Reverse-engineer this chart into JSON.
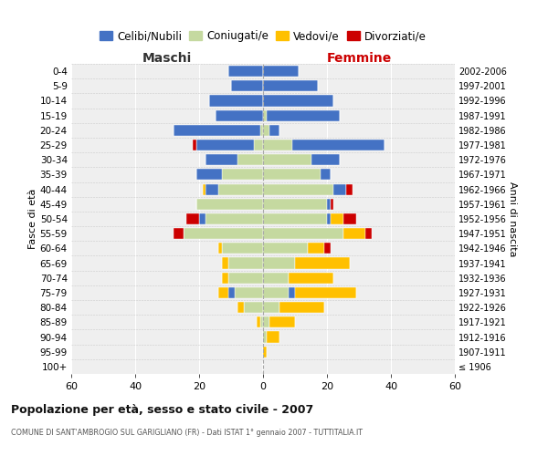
{
  "age_groups": [
    "100+",
    "95-99",
    "90-94",
    "85-89",
    "80-84",
    "75-79",
    "70-74",
    "65-69",
    "60-64",
    "55-59",
    "50-54",
    "45-49",
    "40-44",
    "35-39",
    "30-34",
    "25-29",
    "20-24",
    "15-19",
    "10-14",
    "5-9",
    "0-4"
  ],
  "birth_years": [
    "≤ 1906",
    "1907-1911",
    "1912-1916",
    "1917-1921",
    "1922-1926",
    "1927-1931",
    "1932-1936",
    "1937-1941",
    "1942-1946",
    "1947-1951",
    "1952-1956",
    "1957-1961",
    "1962-1966",
    "1967-1971",
    "1972-1976",
    "1977-1981",
    "1982-1986",
    "1987-1991",
    "1992-1996",
    "1997-2001",
    "2002-2006"
  ],
  "males": {
    "celibi": [
      0,
      0,
      0,
      0,
      0,
      2,
      0,
      0,
      0,
      0,
      2,
      0,
      4,
      8,
      10,
      18,
      27,
      15,
      17,
      10,
      11
    ],
    "coniugati": [
      0,
      0,
      0,
      1,
      6,
      9,
      11,
      11,
      13,
      25,
      18,
      21,
      14,
      13,
      8,
      3,
      1,
      0,
      0,
      0,
      0
    ],
    "vedovi": [
      0,
      0,
      0,
      1,
      2,
      3,
      2,
      2,
      1,
      0,
      0,
      0,
      1,
      0,
      0,
      0,
      0,
      0,
      0,
      0,
      0
    ],
    "divorziati": [
      0,
      0,
      0,
      0,
      0,
      0,
      0,
      0,
      0,
      3,
      4,
      0,
      0,
      0,
      0,
      1,
      0,
      0,
      0,
      0,
      0
    ]
  },
  "females": {
    "nubili": [
      0,
      0,
      0,
      0,
      0,
      2,
      0,
      0,
      0,
      0,
      1,
      1,
      4,
      3,
      9,
      29,
      3,
      23,
      22,
      17,
      11
    ],
    "coniugate": [
      0,
      0,
      1,
      2,
      5,
      8,
      8,
      10,
      14,
      25,
      20,
      20,
      22,
      18,
      15,
      9,
      2,
      1,
      0,
      0,
      0
    ],
    "vedove": [
      0,
      1,
      4,
      8,
      14,
      19,
      14,
      17,
      5,
      7,
      4,
      0,
      0,
      0,
      0,
      0,
      0,
      0,
      0,
      0,
      0
    ],
    "divorziate": [
      0,
      0,
      0,
      0,
      0,
      0,
      0,
      0,
      2,
      2,
      4,
      1,
      2,
      0,
      0,
      0,
      0,
      0,
      0,
      0,
      0
    ]
  },
  "colors": {
    "celibi": "#4472c4",
    "coniugati": "#c5d9a0",
    "vedovi": "#ffc000",
    "divorziati": "#cc0000"
  },
  "xlim": 60,
  "title": "Popolazione per età, sesso e stato civile - 2007",
  "subtitle": "COMUNE DI SANT'AMBROGIO SUL GARIGLIANO (FR) - Dati ISTAT 1° gennaio 2007 - TUTTITALIA.IT",
  "ylabel_left": "Fasce di età",
  "ylabel_right": "Anni di nascita",
  "label_maschi": "Maschi",
  "label_femmine": "Femmine",
  "legend_labels": [
    "Celibi/Nubili",
    "Coniugati/e",
    "Vedovi/e",
    "Divorziati/e"
  ],
  "bg_color": "#ffffff",
  "plot_bg": "#efefef"
}
